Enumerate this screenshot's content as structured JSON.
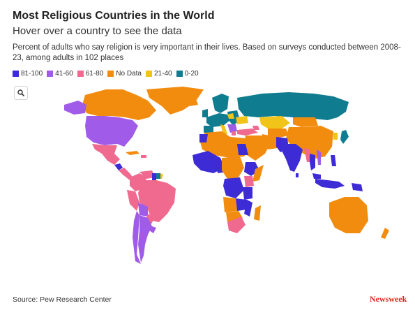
{
  "header": {
    "title": "Most Religious Countries in the World",
    "subtitle": "Hover over a country to see the data",
    "description": "Percent of adults who say religion is very important in their lives. Based on surveys conducted between 2008-23, among adults in 102 places"
  },
  "legend": {
    "items": [
      {
        "label": "81-100",
        "color": "#3d2bd6"
      },
      {
        "label": "41-60",
        "color": "#a05ce8"
      },
      {
        "label": "61-80",
        "color": "#f0698f"
      },
      {
        "label": "No Data",
        "color": "#f28c0f"
      },
      {
        "label": "21-40",
        "color": "#f0c419"
      },
      {
        "label": "0-20",
        "color": "#0f7c8f"
      }
    ]
  },
  "map": {
    "search_icon": "search-icon",
    "background": "#ffffff"
  },
  "footer": {
    "source": "Source: Pew Research Center",
    "logo": "Newsweek"
  }
}
